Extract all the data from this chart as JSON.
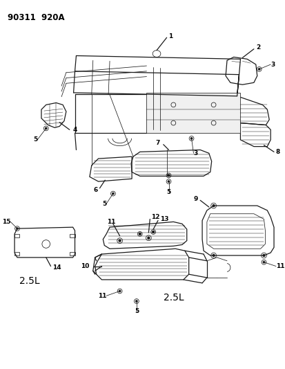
{
  "bg": "#ffffff",
  "lc": "#1a1a1a",
  "tc": "#000000",
  "fig_w": 4.14,
  "fig_h": 5.33,
  "dpi": 100,
  "header": "90311  920A"
}
